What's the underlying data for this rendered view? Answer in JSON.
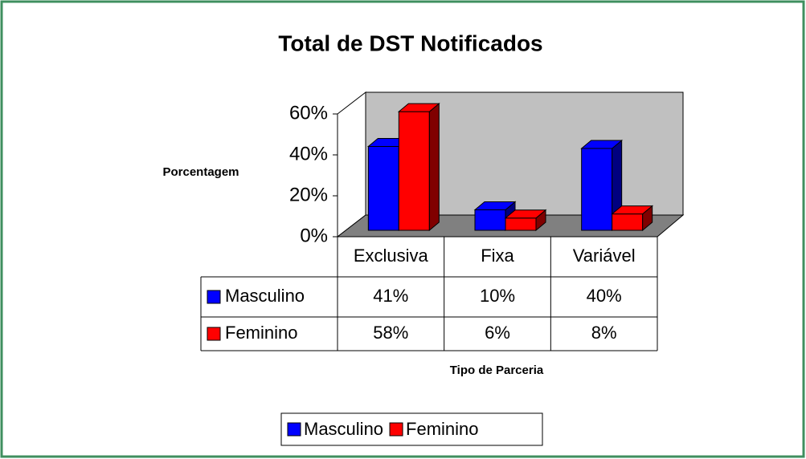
{
  "chart_data": {
    "type": "bar3d",
    "title": "Total de DST Notificados",
    "y_label": "Porcentagem",
    "x_label": "Tipo de Parceria",
    "categories": [
      "Exclusiva",
      "Fixa",
      "Variável"
    ],
    "series": [
      {
        "name": "Masculino",
        "color": "#0000ff",
        "values": [
          41,
          10,
          40
        ],
        "value_labels": [
          "41%",
          "10%",
          "40%"
        ]
      },
      {
        "name": "Feminino",
        "color": "#ff0000",
        "values": [
          58,
          6,
          8
        ],
        "value_labels": [
          "58%",
          "6%",
          "8%"
        ]
      }
    ],
    "ylim": [
      0,
      60
    ],
    "yticks": [
      {
        "value": 0,
        "label": "0%"
      },
      {
        "value": 20,
        "label": "20%"
      },
      {
        "value": 40,
        "label": "40%"
      },
      {
        "value": 60,
        "label": "60%"
      }
    ],
    "legend": "bottom"
  }
}
